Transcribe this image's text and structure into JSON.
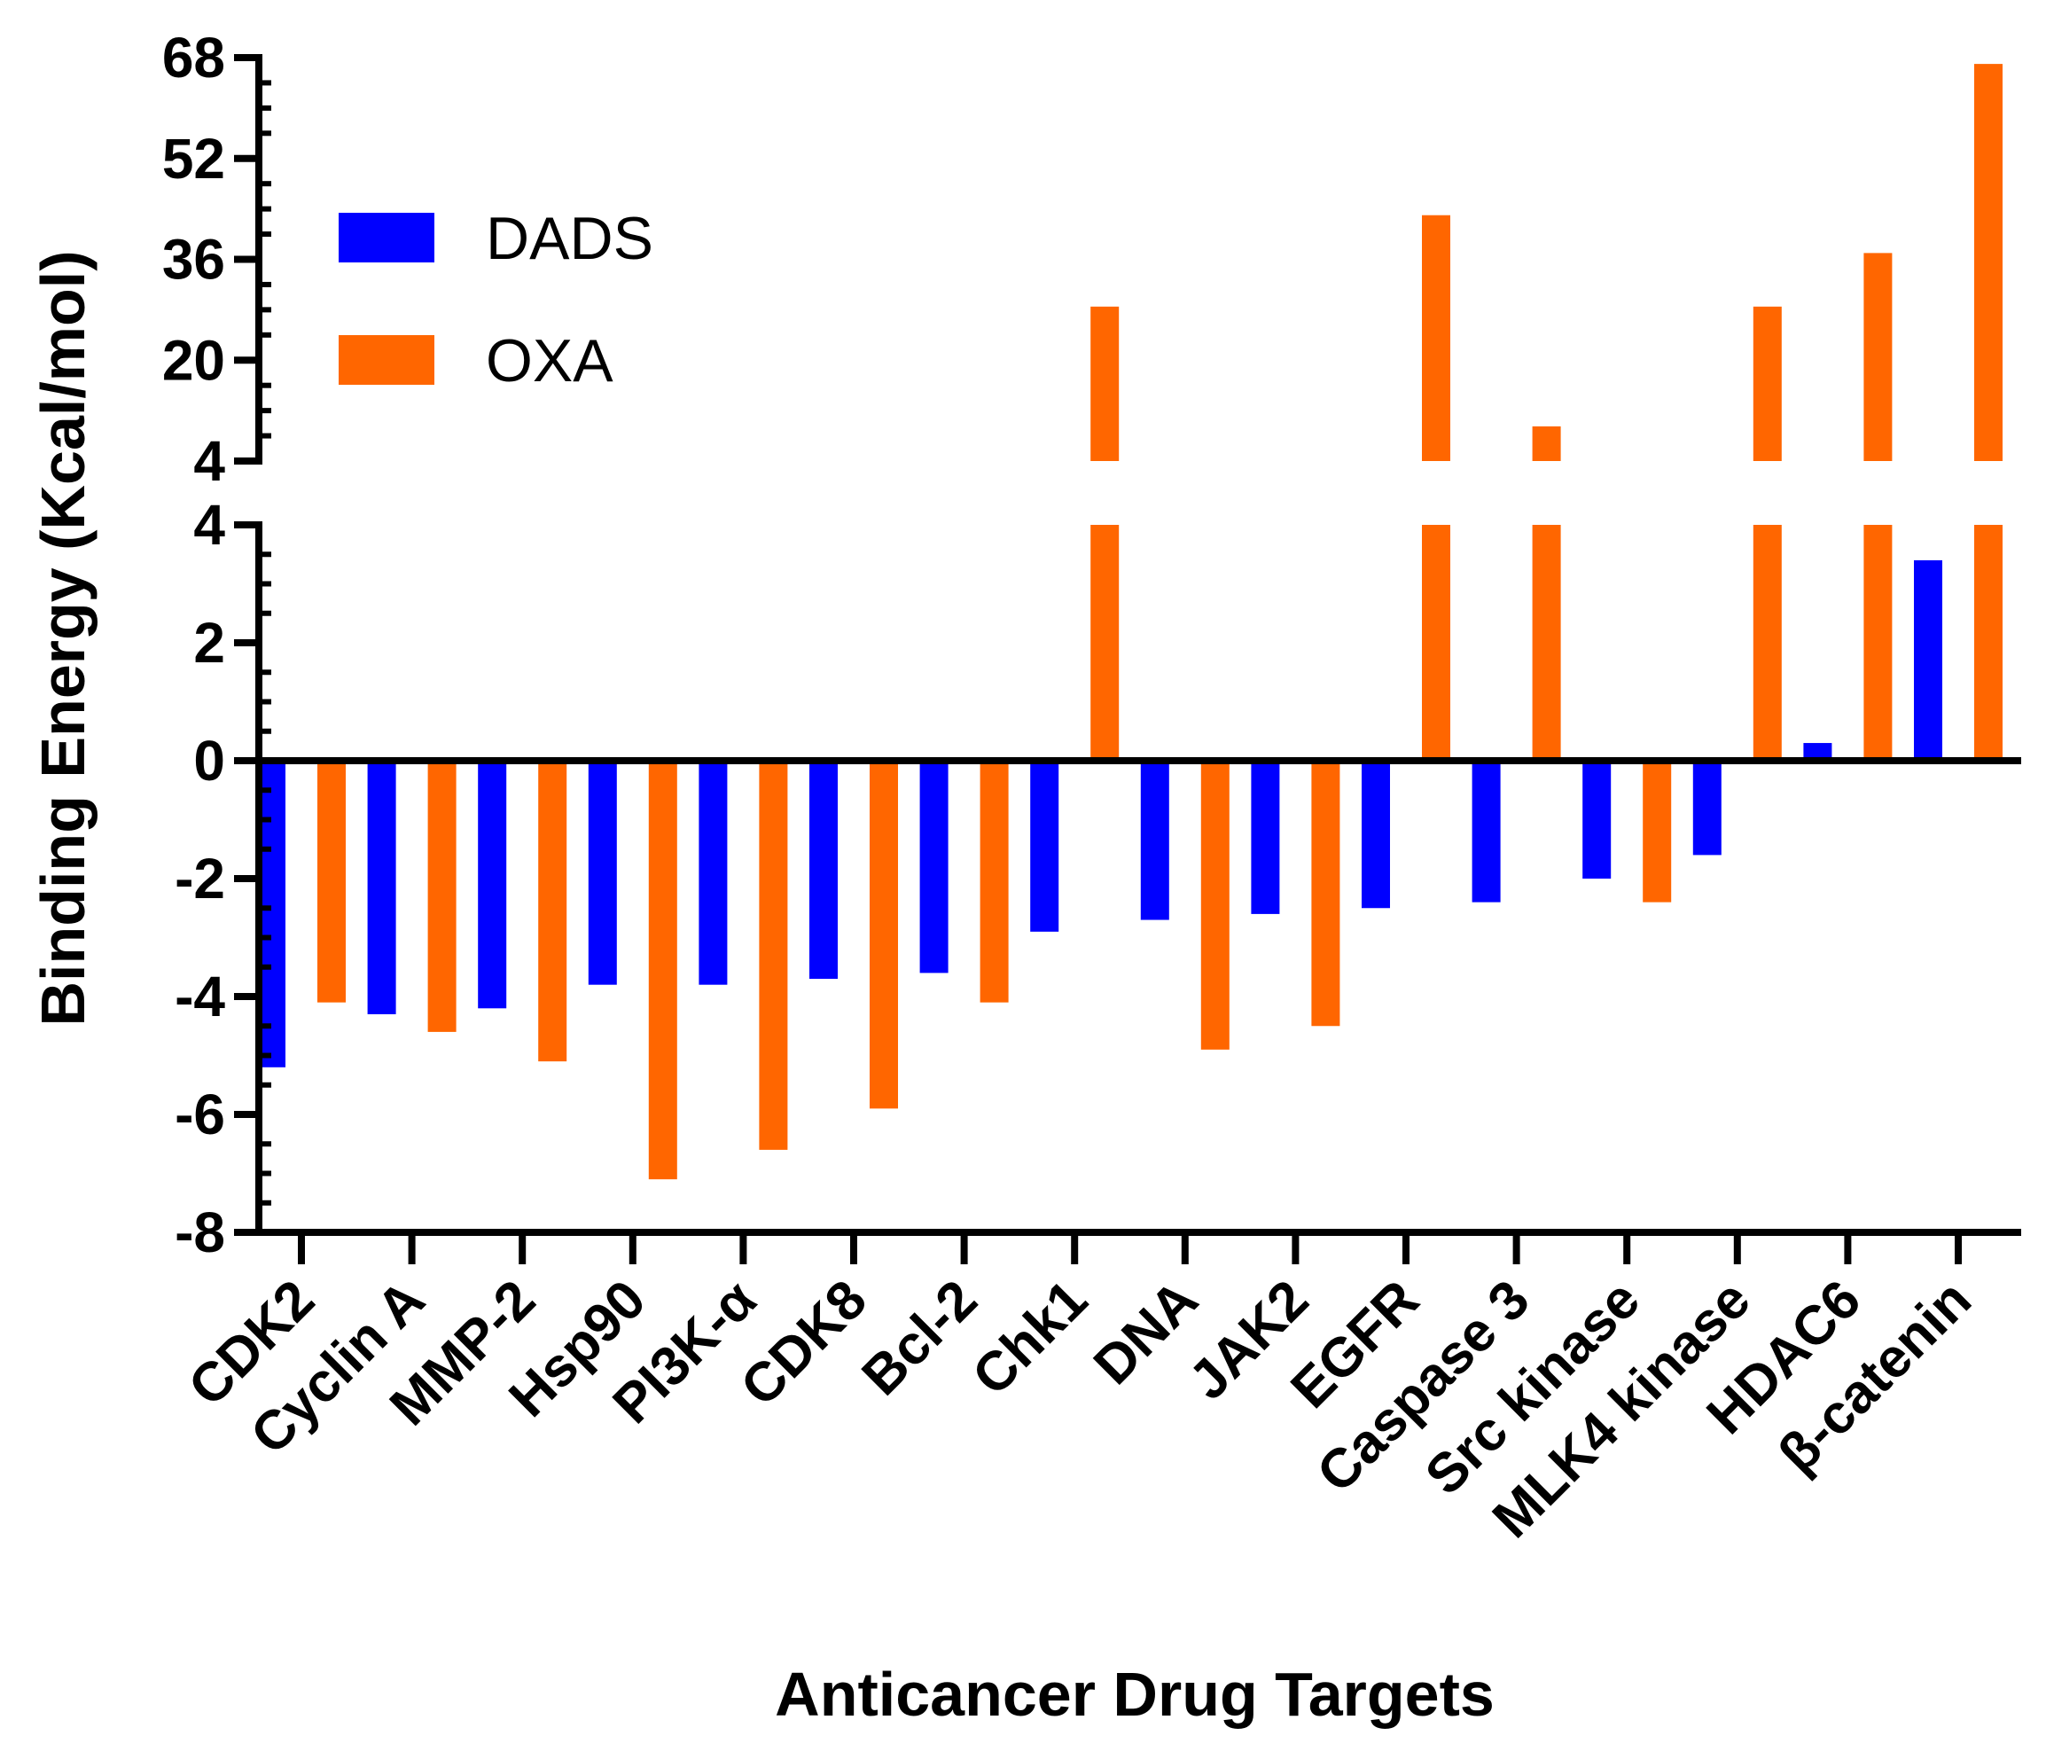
{
  "chart_data": {
    "type": "bar",
    "title": "",
    "xlabel": "Anticancer Drug Targets",
    "ylabel": "Binding Energy (Kcal/mol)",
    "categories": [
      "CDK2",
      "Cyclin A",
      "MMP-2",
      "Hsp90",
      "PI3K-α",
      "CDK8",
      "Bcl-2",
      "Chk1",
      "DNA",
      "JAK2",
      "EGFR",
      "Caspase 3",
      "Src kinase",
      "MLK4 kinase",
      "HDAC6",
      "β-catenin"
    ],
    "series": [
      {
        "name": "DADS",
        "color": "#0000ff",
        "values": [
          -5.2,
          -4.3,
          -4.2,
          -3.8,
          -3.8,
          -3.7,
          -3.6,
          -2.9,
          -2.7,
          -2.6,
          -2.5,
          -2.4,
          -2.0,
          -1.6,
          0.3,
          3.4
        ]
      },
      {
        "name": "OXA",
        "color": "#ff6600",
        "values": [
          -4.1,
          -4.6,
          -5.1,
          -7.1,
          -6.6,
          -5.9,
          -4.1,
          28.5,
          -4.9,
          -4.5,
          43.0,
          9.5,
          -2.4,
          28.5,
          37.0,
          67.0
        ]
      }
    ],
    "y_axis": {
      "broken": true,
      "lower_segment": {
        "range": [
          -8,
          4
        ],
        "ticks": [
          "-8",
          "-6",
          "-4",
          "-2",
          "0",
          "2",
          "4"
        ]
      },
      "upper_segment": {
        "range": [
          4,
          68
        ],
        "ticks": [
          "4",
          "20",
          "36",
          "52",
          "68"
        ]
      }
    },
    "grid": false,
    "legend": {
      "position": "top-left",
      "entries": [
        "DADS",
        "OXA"
      ]
    }
  }
}
